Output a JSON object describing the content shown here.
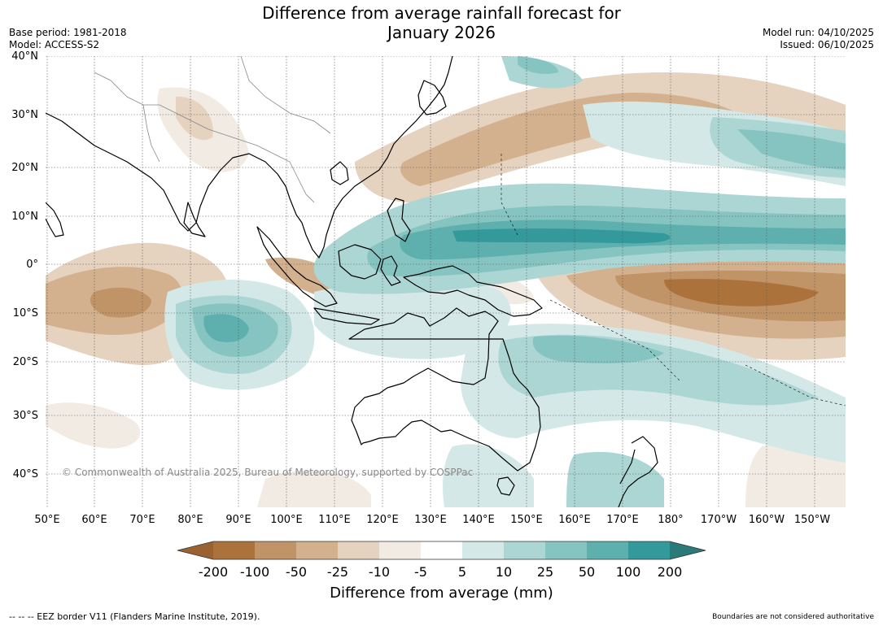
{
  "title_line1": "Difference from average rainfall forecast for",
  "title_line2": "January 2026",
  "base_period": "Base period: 1981-2018",
  "model": "Model: ACCESS-S2",
  "model_run": "Model run: 04/10/2025",
  "issued": "Issued: 06/10/2025",
  "lat_labels": [
    "40°N",
    "30°N",
    "20°N",
    "10°N",
    "0°",
    "10°S",
    "20°S",
    "30°S",
    "40°S"
  ],
  "lon_labels": [
    "50°E",
    "60°E",
    "70°E",
    "80°E",
    "90°E",
    "100°E",
    "110°E",
    "120°E",
    "130°E",
    "140°E",
    "150°E",
    "160°E",
    "170°E",
    "180°",
    "170°W",
    "160°W",
    "150°W"
  ],
  "colorbar": {
    "ticks": [
      "-200",
      "-100",
      "-50",
      "-25",
      "-10",
      "-5",
      "5",
      "10",
      "25",
      "50",
      "100",
      "200"
    ],
    "colors": [
      "#9a6230",
      "#ab723b",
      "#c19468",
      "#d3b18f",
      "#e5d2bf",
      "#f2ebe4",
      "#ffffff",
      "#d4e8e7",
      "#acd6d4",
      "#86c4c2",
      "#5eb0ae",
      "#33999a",
      "#2a7a7a"
    ],
    "label": "Difference from average (mm)"
  },
  "copyright": "© Commonwealth of Australia 2025, Bureau of Meteorology, supported by COSPPac",
  "eez_note": "--  --  -- EEZ border V11 (Flanders Marine Institute, 2019).",
  "disclaimer": "Boundaries are not considered authoritative"
}
